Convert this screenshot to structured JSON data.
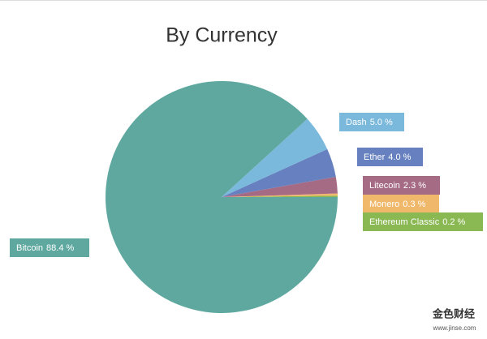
{
  "chart_data": {
    "type": "pie",
    "title": "By Currency",
    "categories": [
      "Bitcoin",
      "Dash",
      "Ether",
      "Litecoin",
      "Monero",
      "Ethereum Classic"
    ],
    "values": [
      88.4,
      5.0,
      4.0,
      2.3,
      0.3,
      0.2
    ],
    "value_labels": [
      "88.4 %",
      "5.0 %",
      "4.0 %",
      "2.3 %",
      "0.3 %",
      "0.2 %"
    ],
    "colors": [
      "#5fa8a0",
      "#7ab8dc",
      "#6680c0",
      "#a56a84",
      "#f0b86a",
      "#8ab852"
    ]
  },
  "watermark": {
    "brand": "金色财经",
    "url": "www.jinse.com"
  }
}
